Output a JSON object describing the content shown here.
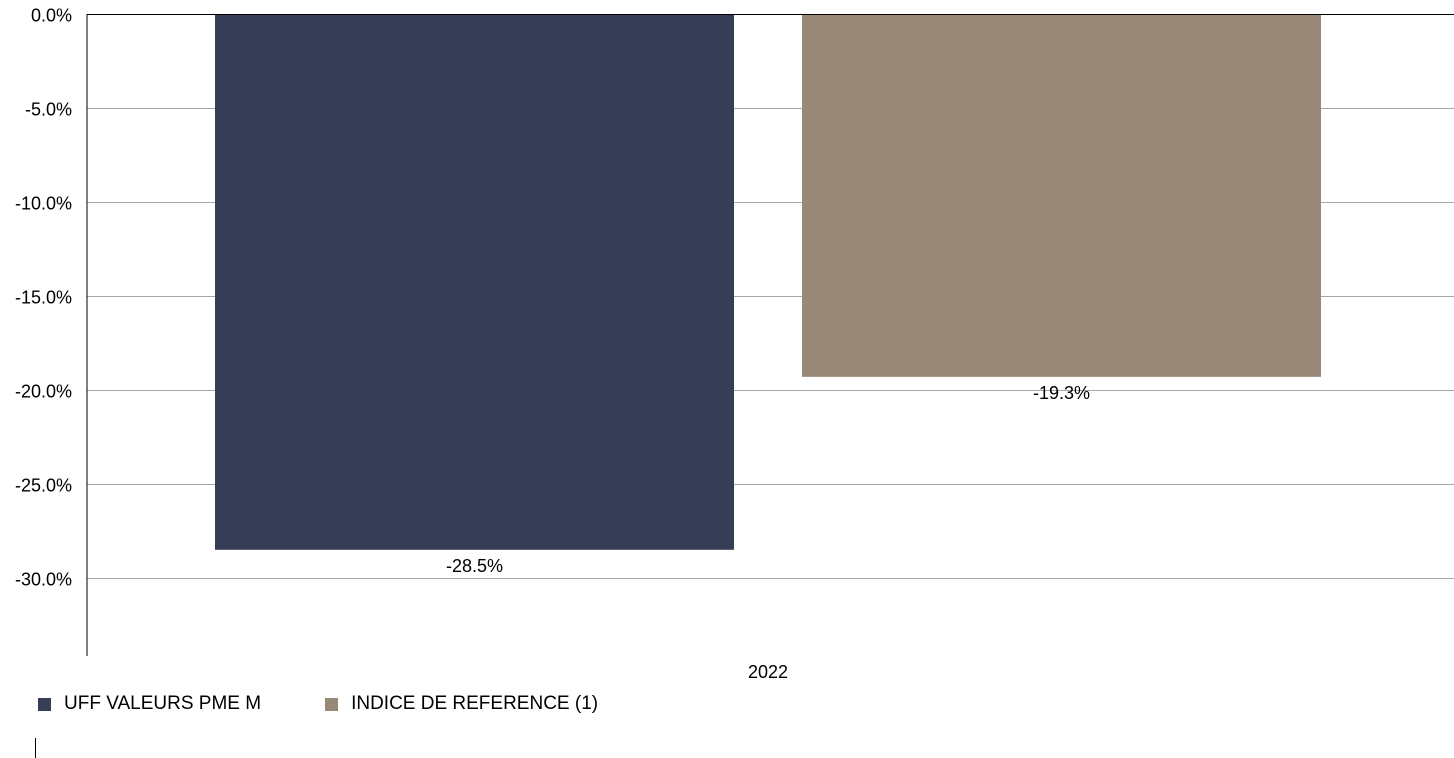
{
  "chart_data": {
    "type": "bar",
    "categories": [
      "2022"
    ],
    "series": [
      {
        "name": "UFF VALEURS PME M",
        "values": [
          -28.5
        ],
        "color": "#353e55",
        "label": "-28.5%"
      },
      {
        "name": "INDICE DE REFERENCE (1)",
        "values": [
          -19.3
        ],
        "color": "#988877",
        "label": "-19.3%"
      }
    ],
    "ylim": [
      -34,
      0
    ],
    "yticks": [
      0,
      -5,
      -10,
      -15,
      -20,
      -25,
      -30
    ],
    "ytick_labels": [
      "0.0%",
      "-5.0%",
      "-10.0%",
      "-15.0%",
      "-20.0%",
      "-25.0%",
      "-30.0%"
    ],
    "grid": true,
    "legend_position": "bottom-left"
  }
}
